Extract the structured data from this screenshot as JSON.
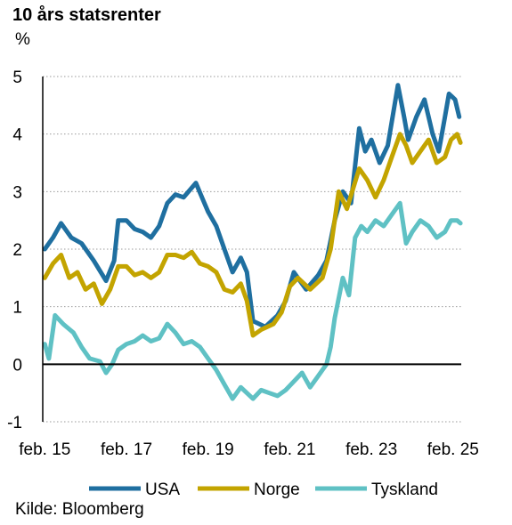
{
  "header": {
    "title": "10 års statsrenter",
    "unit": "%"
  },
  "footer": {
    "source": "Kilde: Bloomberg"
  },
  "chart_data": {
    "type": "line",
    "title": "10 års statsrenter",
    "ylabel": "%",
    "xlabel": "",
    "ylim": [
      -1,
      5
    ],
    "xlim": [
      2015.05,
      2025.3
    ],
    "grid": "horizontal dotted",
    "legend_position": "bottom",
    "y_ticks": [
      "-1",
      "0",
      "1",
      "2",
      "3",
      "4",
      "5"
    ],
    "x_ticks": [
      {
        "label": "feb. 15",
        "x": 2015.1
      },
      {
        "label": "feb. 17",
        "x": 2017.1
      },
      {
        "label": "feb. 19",
        "x": 2019.1
      },
      {
        "label": "feb. 21",
        "x": 2021.1
      },
      {
        "label": "feb. 23",
        "x": 2023.1
      },
      {
        "label": "feb. 25",
        "x": 2025.1
      }
    ],
    "series": [
      {
        "name": "USA",
        "color": "#1f6fa0",
        "points": [
          [
            2015.1,
            2.0
          ],
          [
            2015.3,
            2.2
          ],
          [
            2015.5,
            2.45
          ],
          [
            2015.75,
            2.2
          ],
          [
            2016.0,
            2.1
          ],
          [
            2016.3,
            1.8
          ],
          [
            2016.6,
            1.45
          ],
          [
            2016.8,
            1.8
          ],
          [
            2016.9,
            2.5
          ],
          [
            2017.1,
            2.5
          ],
          [
            2017.3,
            2.35
          ],
          [
            2017.5,
            2.3
          ],
          [
            2017.7,
            2.2
          ],
          [
            2017.9,
            2.4
          ],
          [
            2018.1,
            2.8
          ],
          [
            2018.3,
            2.95
          ],
          [
            2018.5,
            2.9
          ],
          [
            2018.8,
            3.15
          ],
          [
            2018.95,
            2.9
          ],
          [
            2019.1,
            2.65
          ],
          [
            2019.3,
            2.4
          ],
          [
            2019.5,
            2.0
          ],
          [
            2019.7,
            1.6
          ],
          [
            2019.9,
            1.85
          ],
          [
            2020.05,
            1.6
          ],
          [
            2020.2,
            0.75
          ],
          [
            2020.5,
            0.65
          ],
          [
            2020.8,
            0.85
          ],
          [
            2021.0,
            1.1
          ],
          [
            2021.2,
            1.6
          ],
          [
            2021.5,
            1.3
          ],
          [
            2021.8,
            1.55
          ],
          [
            2022.0,
            1.8
          ],
          [
            2022.2,
            2.5
          ],
          [
            2022.4,
            3.0
          ],
          [
            2022.6,
            2.8
          ],
          [
            2022.8,
            4.1
          ],
          [
            2022.95,
            3.7
          ],
          [
            2023.1,
            3.9
          ],
          [
            2023.3,
            3.5
          ],
          [
            2023.5,
            3.8
          ],
          [
            2023.75,
            4.85
          ],
          [
            2023.9,
            4.3
          ],
          [
            2024.0,
            3.9
          ],
          [
            2024.2,
            4.3
          ],
          [
            2024.4,
            4.6
          ],
          [
            2024.6,
            4.0
          ],
          [
            2024.75,
            3.7
          ],
          [
            2024.9,
            4.3
          ],
          [
            2025.0,
            4.7
          ],
          [
            2025.15,
            4.6
          ],
          [
            2025.25,
            4.3
          ]
        ]
      },
      {
        "name": "Norge",
        "color": "#c3a400",
        "points": [
          [
            2015.1,
            1.5
          ],
          [
            2015.3,
            1.75
          ],
          [
            2015.5,
            1.9
          ],
          [
            2015.7,
            1.5
          ],
          [
            2015.9,
            1.6
          ],
          [
            2016.1,
            1.3
          ],
          [
            2016.3,
            1.4
          ],
          [
            2016.5,
            1.05
          ],
          [
            2016.7,
            1.3
          ],
          [
            2016.9,
            1.7
          ],
          [
            2017.1,
            1.7
          ],
          [
            2017.3,
            1.55
          ],
          [
            2017.5,
            1.6
          ],
          [
            2017.7,
            1.5
          ],
          [
            2017.9,
            1.6
          ],
          [
            2018.1,
            1.9
          ],
          [
            2018.3,
            1.9
          ],
          [
            2018.5,
            1.85
          ],
          [
            2018.7,
            1.95
          ],
          [
            2018.9,
            1.75
          ],
          [
            2019.1,
            1.7
          ],
          [
            2019.3,
            1.6
          ],
          [
            2019.5,
            1.3
          ],
          [
            2019.7,
            1.25
          ],
          [
            2019.9,
            1.4
          ],
          [
            2020.05,
            1.1
          ],
          [
            2020.2,
            0.5
          ],
          [
            2020.4,
            0.6
          ],
          [
            2020.7,
            0.7
          ],
          [
            2020.9,
            0.9
          ],
          [
            2021.1,
            1.35
          ],
          [
            2021.3,
            1.5
          ],
          [
            2021.6,
            1.3
          ],
          [
            2021.9,
            1.5
          ],
          [
            2022.1,
            2.0
          ],
          [
            2022.3,
            3.0
          ],
          [
            2022.5,
            2.7
          ],
          [
            2022.8,
            3.4
          ],
          [
            2023.0,
            3.2
          ],
          [
            2023.2,
            2.9
          ],
          [
            2023.4,
            3.2
          ],
          [
            2023.6,
            3.6
          ],
          [
            2023.8,
            4.0
          ],
          [
            2023.95,
            3.8
          ],
          [
            2024.1,
            3.5
          ],
          [
            2024.3,
            3.7
          ],
          [
            2024.5,
            3.9
          ],
          [
            2024.7,
            3.5
          ],
          [
            2024.9,
            3.6
          ],
          [
            2025.05,
            3.9
          ],
          [
            2025.2,
            4.0
          ],
          [
            2025.28,
            3.85
          ]
        ]
      },
      {
        "name": "Tyskland",
        "color": "#5fc1c4",
        "points": [
          [
            2015.1,
            0.35
          ],
          [
            2015.2,
            0.1
          ],
          [
            2015.35,
            0.85
          ],
          [
            2015.55,
            0.7
          ],
          [
            2015.8,
            0.55
          ],
          [
            2016.0,
            0.3
          ],
          [
            2016.2,
            0.1
          ],
          [
            2016.45,
            0.05
          ],
          [
            2016.6,
            -0.15
          ],
          [
            2016.75,
            0.0
          ],
          [
            2016.9,
            0.25
          ],
          [
            2017.1,
            0.35
          ],
          [
            2017.3,
            0.4
          ],
          [
            2017.5,
            0.5
          ],
          [
            2017.7,
            0.4
          ],
          [
            2017.9,
            0.45
          ],
          [
            2018.1,
            0.7
          ],
          [
            2018.3,
            0.55
          ],
          [
            2018.5,
            0.35
          ],
          [
            2018.7,
            0.4
          ],
          [
            2018.9,
            0.3
          ],
          [
            2019.1,
            0.1
          ],
          [
            2019.3,
            -0.1
          ],
          [
            2019.5,
            -0.35
          ],
          [
            2019.7,
            -0.6
          ],
          [
            2019.9,
            -0.4
          ],
          [
            2020.05,
            -0.5
          ],
          [
            2020.2,
            -0.6
          ],
          [
            2020.4,
            -0.45
          ],
          [
            2020.6,
            -0.5
          ],
          [
            2020.8,
            -0.55
          ],
          [
            2021.0,
            -0.45
          ],
          [
            2021.2,
            -0.3
          ],
          [
            2021.4,
            -0.15
          ],
          [
            2021.6,
            -0.4
          ],
          [
            2021.8,
            -0.2
          ],
          [
            2022.0,
            0.0
          ],
          [
            2022.1,
            0.3
          ],
          [
            2022.2,
            0.8
          ],
          [
            2022.4,
            1.5
          ],
          [
            2022.55,
            1.2
          ],
          [
            2022.7,
            2.2
          ],
          [
            2022.85,
            2.4
          ],
          [
            2023.0,
            2.3
          ],
          [
            2023.2,
            2.5
          ],
          [
            2023.4,
            2.4
          ],
          [
            2023.6,
            2.6
          ],
          [
            2023.8,
            2.8
          ],
          [
            2023.95,
            2.1
          ],
          [
            2024.1,
            2.3
          ],
          [
            2024.3,
            2.5
          ],
          [
            2024.5,
            2.4
          ],
          [
            2024.7,
            2.2
          ],
          [
            2024.9,
            2.3
          ],
          [
            2025.05,
            2.5
          ],
          [
            2025.2,
            2.5
          ],
          [
            2025.28,
            2.45
          ]
        ]
      }
    ]
  }
}
